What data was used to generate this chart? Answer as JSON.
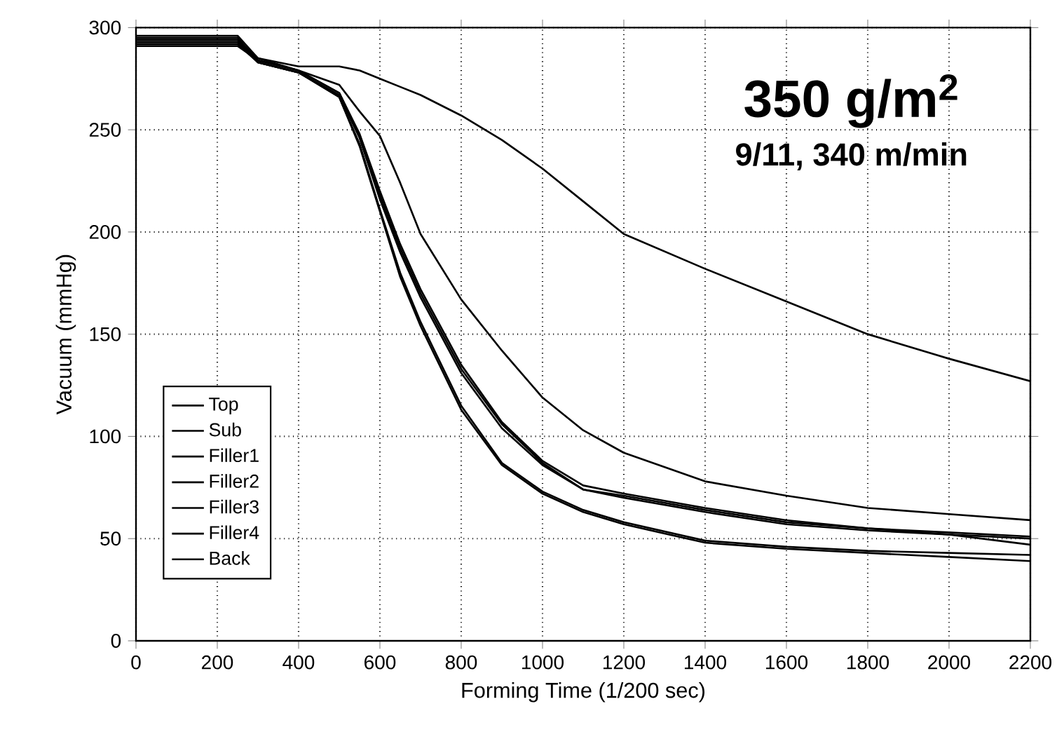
{
  "chart_data": {
    "type": "line",
    "xlabel": "Forming Time (1/200 sec)",
    "ylabel": "Vacuum (mmHg)",
    "annotations": [
      "350 g/m$^{2}$",
      "9/11, 340 m/min"
    ],
    "xlim": [
      0,
      2200
    ],
    "ylim": [
      0,
      300
    ],
    "xticks": [
      0,
      200,
      400,
      600,
      800,
      1000,
      1200,
      1400,
      1600,
      1800,
      2000,
      2200
    ],
    "yticks": [
      0,
      50,
      100,
      150,
      200,
      250,
      300
    ],
    "grid": true,
    "legend": "bottom left",
    "marker": "none",
    "line_style": "solid",
    "x": [
      0,
      100,
      200,
      250,
      300,
      400,
      500,
      550,
      600,
      650,
      700,
      800,
      900,
      1000,
      1100,
      1200,
      1400,
      1600,
      1800,
      2000,
      2200
    ],
    "series": [
      {
        "name": "Top",
        "color": "#000000",
        "values": [
          294,
          294,
          294,
          294,
          285,
          281,
          281,
          279,
          275,
          271,
          267,
          257,
          245,
          231,
          215,
          199,
          182,
          166,
          150,
          138,
          127
        ]
      },
      {
        "name": "Sub",
        "color": "#000000",
        "values": [
          294,
          294,
          294,
          294,
          284,
          279,
          272,
          259,
          247,
          224,
          199,
          167,
          142,
          119,
          103,
          92,
          78,
          71,
          65,
          62,
          59
        ]
      },
      {
        "name": "Filler1",
        "color": "#000000",
        "values": [
          296,
          296,
          296,
          296,
          285,
          279,
          268,
          247,
          218,
          192,
          170,
          133,
          106,
          87,
          74,
          71,
          64,
          58,
          55,
          53,
          51
        ]
      },
      {
        "name": "Filler2",
        "color": "#000000",
        "values": [
          291,
          291,
          291,
          291,
          284,
          279,
          268,
          248,
          220,
          194,
          172,
          135,
          107,
          88,
          76,
          72,
          65,
          59,
          55,
          52,
          47
        ]
      },
      {
        "name": "Filler3",
        "color": "#000000",
        "values": [
          293,
          293,
          293,
          293,
          283,
          278,
          267,
          246,
          216,
          190,
          168,
          131,
          104,
          86,
          74,
          70,
          63,
          57,
          54,
          52,
          50
        ]
      },
      {
        "name": "Filler4",
        "color": "#000000",
        "values": [
          295,
          295,
          295,
          295,
          283,
          278,
          266,
          243,
          211,
          180,
          156,
          115,
          87,
          73,
          64,
          58,
          49,
          46,
          44,
          43,
          42
        ]
      },
      {
        "name": "Back",
        "color": "#000000",
        "values": [
          292,
          292,
          292,
          292,
          283,
          278,
          266,
          242,
          210,
          178,
          154,
          113,
          86,
          72,
          63,
          57,
          48,
          45,
          43,
          41,
          39
        ]
      }
    ]
  }
}
